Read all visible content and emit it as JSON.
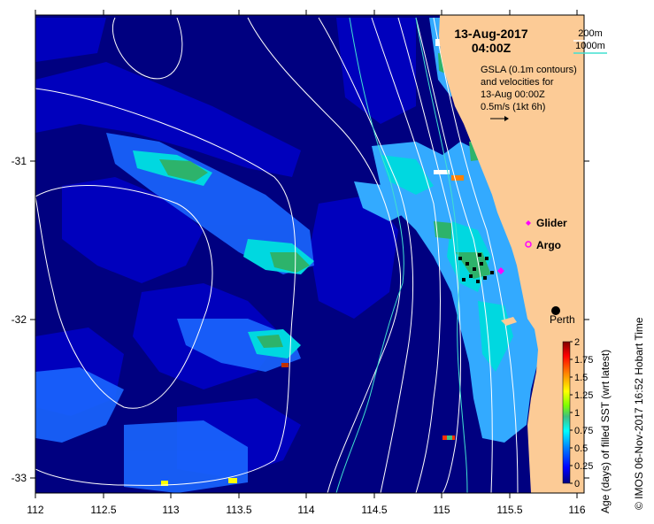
{
  "map": {
    "date_line": "13-Aug-2017",
    "time_line": "04:00Z",
    "info_lines": [
      "GSLA (0.1m contours)",
      "and velocities for",
      "13-Aug 00:00Z",
      "0.5m/s (1kt 6h)"
    ],
    "isobath_legend": [
      {
        "label": "200m",
        "color": "#ffffff"
      },
      {
        "label": "1000m",
        "color": "#40e0d0"
      }
    ],
    "marker_legend": [
      {
        "label": "Glider",
        "color": "#ff00ff",
        "icon": "diamond-icon"
      },
      {
        "label": "Argo",
        "color": "#ff00ff",
        "icon": "ring-icon"
      }
    ],
    "place_label": "Perth",
    "x_axis": {
      "ticks": [
        "112",
        "112.5",
        "113",
        "113.5",
        "114",
        "114.5",
        "115",
        "115.5",
        "116"
      ]
    },
    "y_axis": {
      "ticks": [
        "-31",
        "-32",
        "-33"
      ]
    },
    "colorbar": {
      "title": "Age (days) of filled SST (wrt latest)",
      "ticks": [
        "2",
        "1.75",
        "1.5",
        "1.25",
        "1",
        "0.75",
        "0.5",
        "0.25",
        "0"
      ],
      "colors": [
        "#00007f",
        "#0000ff",
        "#0080ff",
        "#00ffff",
        "#40c080",
        "#80ff00",
        "#ffff00",
        "#ff8000",
        "#ff0000",
        "#7f0000"
      ]
    },
    "credit": "© IMOS 06-Nov-2017 16:52 Hobart Time",
    "colors": {
      "ocean_deep": "#000080",
      "land": "#fccb96",
      "shelf": "#33aaff"
    }
  }
}
